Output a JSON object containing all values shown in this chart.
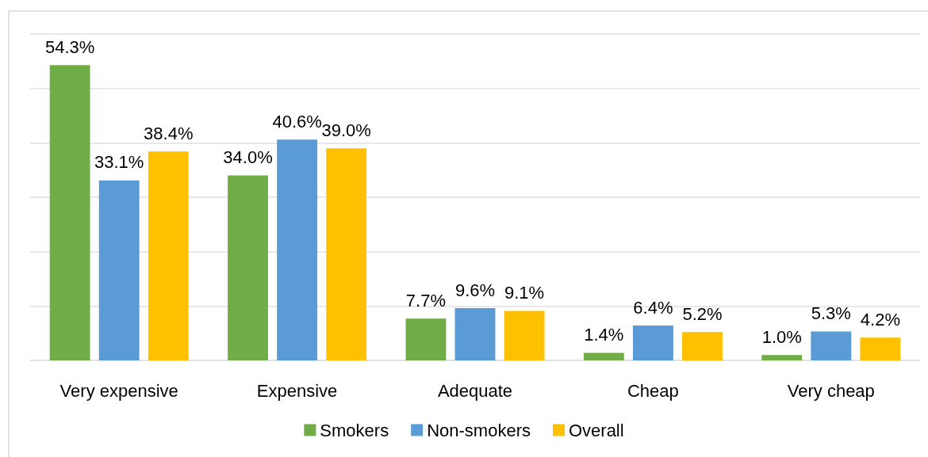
{
  "chart_data": {
    "type": "bar",
    "categories": [
      "Very expensive",
      "Expensive",
      "Adequate",
      "Cheap",
      "Very cheap"
    ],
    "series": [
      {
        "name": "Smokers",
        "color": "#70ad47",
        "values": [
          54.3,
          34.0,
          7.7,
          1.4,
          1.0
        ],
        "value_labels": [
          "54.3%",
          "34.0%",
          "7.7%",
          "1.4%",
          "1.0%"
        ]
      },
      {
        "name": "Non-smokers",
        "color": "#5b9bd5",
        "values": [
          33.1,
          40.6,
          9.6,
          6.4,
          5.3
        ],
        "value_labels": [
          "33.1%",
          "40.6%",
          "9.6%",
          "6.4%",
          "5.3%"
        ]
      },
      {
        "name": "Overall",
        "color": "#ffc000",
        "values": [
          38.4,
          39.0,
          9.1,
          5.2,
          4.2
        ],
        "value_labels": [
          "38.4%",
          "39.0%",
          "9.1%",
          "5.2%",
          "4.2%"
        ]
      }
    ],
    "ylim": [
      0,
      60
    ],
    "yticks": [
      {
        "value": 0,
        "label": null
      },
      {
        "value": 10,
        "label": null
      },
      {
        "value": 20,
        "label": null
      },
      {
        "value": 30,
        "label": null
      },
      {
        "value": 40,
        "label": null
      },
      {
        "value": 50,
        "label": null
      },
      {
        "value": 60,
        "label": null
      }
    ],
    "tick_labels": "x",
    "grid": "y",
    "legend": "bottom"
  }
}
